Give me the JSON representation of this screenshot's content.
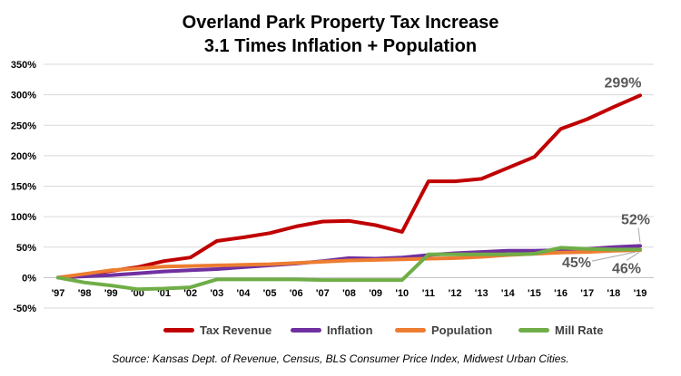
{
  "chart_data": {
    "type": "line",
    "title": "Overland Park Property Tax Increase",
    "subtitle": "3.1 Times Inflation + Population",
    "categories": [
      "'97",
      "'98",
      "'99",
      "'00",
      "'01",
      "'02",
      "'03",
      "'04",
      "'05",
      "'06",
      "'07",
      "'08",
      "'09",
      "'10",
      "'11",
      "'12",
      "'13",
      "'14",
      "'15",
      "'16",
      "'17",
      "'18",
      "'19"
    ],
    "y_ticks": [
      "350%",
      "300%",
      "250%",
      "200%",
      "150%",
      "100%",
      "50%",
      "0%",
      "-50%"
    ],
    "ylim": [
      -50,
      350
    ],
    "grid": true,
    "legend_position": "bottom",
    "series": [
      {
        "name": "Tax Revenue",
        "color": "#C00000",
        "values": [
          0,
          5,
          11,
          17,
          27,
          33,
          60,
          66,
          73,
          84,
          92,
          93,
          86,
          75,
          158,
          158,
          162,
          180,
          198,
          244,
          260,
          280,
          299
        ]
      },
      {
        "name": "Inflation",
        "color": "#7030A0",
        "values": [
          0,
          2,
          4,
          7,
          10,
          12,
          14,
          17,
          20,
          23,
          27,
          32,
          31,
          33,
          37,
          40,
          42,
          44,
          44,
          45,
          47,
          50,
          52
        ]
      },
      {
        "name": "Population",
        "color": "#ED7D31",
        "values": [
          0,
          6,
          12,
          15,
          18,
          19,
          20,
          21,
          22,
          24,
          26,
          28,
          29,
          30,
          31,
          32,
          34,
          37,
          39,
          41,
          42,
          44,
          45
        ]
      },
      {
        "name": "Mill Rate",
        "color": "#70AD47",
        "values": [
          0,
          -8,
          -13,
          -19,
          -18,
          -16,
          -3,
          -3,
          -3,
          -3,
          -4,
          -4,
          -4,
          -4,
          38,
          38,
          38,
          38,
          39,
          49,
          47,
          46,
          46
        ]
      }
    ],
    "annotations": [
      "299%",
      "52%",
      "45%",
      "46%"
    ]
  },
  "source": "Source: Kansas Dept. of Revenue, Census, BLS Consumer Price Index, Midwest Urban Cities."
}
